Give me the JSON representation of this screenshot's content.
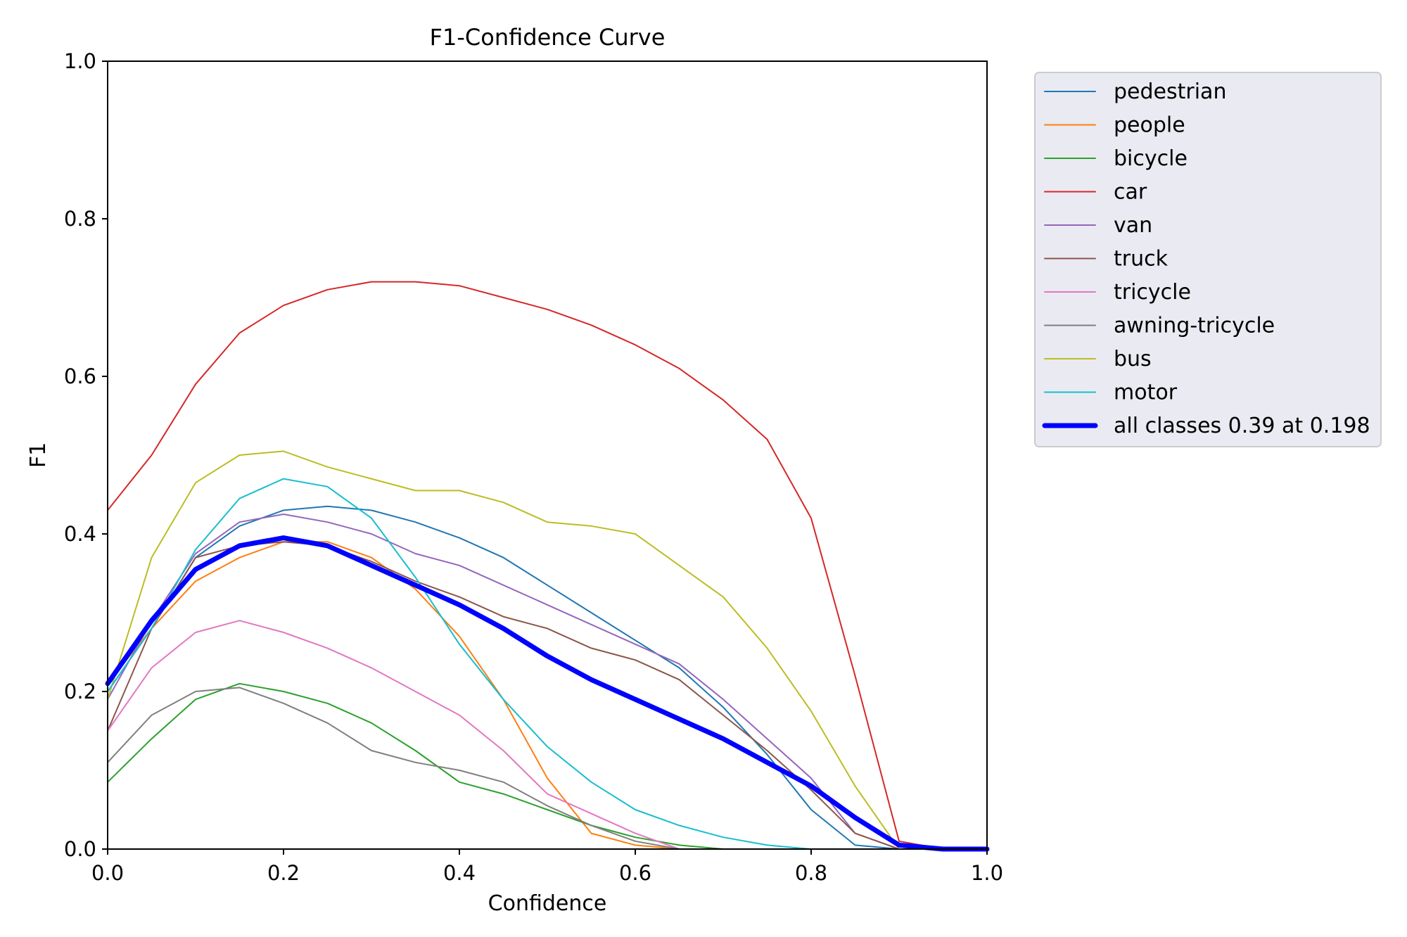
{
  "chart_data": {
    "type": "line",
    "title": "F1-Confidence Curve",
    "xlabel": "Confidence",
    "ylabel": "F1",
    "xlim": [
      0.0,
      1.0
    ],
    "ylim": [
      0.0,
      1.0
    ],
    "xticks": [
      "0.0",
      "0.2",
      "0.4",
      "0.6",
      "0.8",
      "1.0"
    ],
    "yticks": [
      "0.0",
      "0.2",
      "0.4",
      "0.6",
      "0.8",
      "1.0"
    ],
    "legend_position": "outside-right-top",
    "grid": false,
    "x": [
      0.0,
      0.05,
      0.1,
      0.15,
      0.2,
      0.25,
      0.3,
      0.35,
      0.4,
      0.45,
      0.5,
      0.55,
      0.6,
      0.65,
      0.7,
      0.75,
      0.8,
      0.85,
      0.9,
      0.95,
      1.0
    ],
    "series": [
      {
        "name": "pedestrian",
        "color": "#1f77b4",
        "width": 2,
        "values": [
          0.2,
          0.28,
          0.37,
          0.41,
          0.43,
          0.435,
          0.43,
          0.415,
          0.395,
          0.37,
          0.335,
          0.3,
          0.265,
          0.23,
          0.18,
          0.12,
          0.05,
          0.005,
          0.0,
          0.0,
          0.0
        ]
      },
      {
        "name": "people",
        "color": "#ff7f0e",
        "width": 2,
        "values": [
          0.21,
          0.28,
          0.34,
          0.37,
          0.39,
          0.39,
          0.37,
          0.33,
          0.27,
          0.19,
          0.09,
          0.02,
          0.005,
          0.0,
          0.0,
          0.0,
          0.0,
          0.0,
          0.0,
          0.0,
          0.0
        ]
      },
      {
        "name": "bicycle",
        "color": "#2ca02c",
        "width": 2,
        "values": [
          0.085,
          0.14,
          0.19,
          0.21,
          0.2,
          0.185,
          0.16,
          0.125,
          0.085,
          0.07,
          0.05,
          0.03,
          0.015,
          0.005,
          0.0,
          0.0,
          0.0,
          0.0,
          0.0,
          0.0,
          0.0
        ]
      },
      {
        "name": "car",
        "color": "#d62728",
        "width": 2,
        "values": [
          0.43,
          0.5,
          0.59,
          0.655,
          0.69,
          0.71,
          0.72,
          0.72,
          0.715,
          0.7,
          0.685,
          0.665,
          0.64,
          0.61,
          0.57,
          0.52,
          0.42,
          0.22,
          0.01,
          0.0,
          0.0
        ]
      },
      {
        "name": "van",
        "color": "#9467bd",
        "width": 2,
        "values": [
          0.19,
          0.29,
          0.375,
          0.415,
          0.425,
          0.415,
          0.4,
          0.375,
          0.36,
          0.335,
          0.31,
          0.285,
          0.26,
          0.235,
          0.19,
          0.14,
          0.09,
          0.02,
          0.0,
          0.0,
          0.0
        ]
      },
      {
        "name": "truck",
        "color": "#8c564b",
        "width": 2,
        "values": [
          0.15,
          0.28,
          0.37,
          0.385,
          0.39,
          0.385,
          0.365,
          0.34,
          0.32,
          0.295,
          0.28,
          0.255,
          0.24,
          0.215,
          0.17,
          0.125,
          0.075,
          0.02,
          0.0,
          0.0,
          0.0
        ]
      },
      {
        "name": "tricycle",
        "color": "#e377c2",
        "width": 2,
        "values": [
          0.15,
          0.23,
          0.275,
          0.29,
          0.275,
          0.255,
          0.23,
          0.2,
          0.17,
          0.125,
          0.07,
          0.045,
          0.02,
          0.0,
          0.0,
          0.0,
          0.0,
          0.0,
          0.0,
          0.0,
          0.0
        ]
      },
      {
        "name": "awning-tricycle",
        "color": "#7f7f7f",
        "width": 2,
        "values": [
          0.11,
          0.17,
          0.2,
          0.205,
          0.185,
          0.16,
          0.125,
          0.11,
          0.1,
          0.085,
          0.055,
          0.03,
          0.01,
          0.0,
          0.0,
          0.0,
          0.0,
          0.0,
          0.0,
          0.0,
          0.0
        ]
      },
      {
        "name": "bus",
        "color": "#bcbd22",
        "width": 2,
        "values": [
          0.19,
          0.37,
          0.465,
          0.5,
          0.505,
          0.485,
          0.47,
          0.455,
          0.455,
          0.44,
          0.415,
          0.41,
          0.4,
          0.36,
          0.32,
          0.255,
          0.175,
          0.08,
          0.0,
          0.0,
          0.0
        ]
      },
      {
        "name": "motor",
        "color": "#17becf",
        "width": 2,
        "values": [
          0.2,
          0.28,
          0.38,
          0.445,
          0.47,
          0.46,
          0.42,
          0.345,
          0.26,
          0.19,
          0.13,
          0.085,
          0.05,
          0.03,
          0.015,
          0.005,
          0.0,
          0.0,
          0.0,
          0.0,
          0.0
        ]
      },
      {
        "name": "all classes 0.39 at 0.198",
        "color": "#0000ff",
        "width": 7,
        "values": [
          0.21,
          0.29,
          0.355,
          0.385,
          0.395,
          0.385,
          0.36,
          0.335,
          0.31,
          0.28,
          0.245,
          0.215,
          0.19,
          0.165,
          0.14,
          0.11,
          0.08,
          0.04,
          0.005,
          0.0,
          0.0
        ]
      }
    ]
  }
}
